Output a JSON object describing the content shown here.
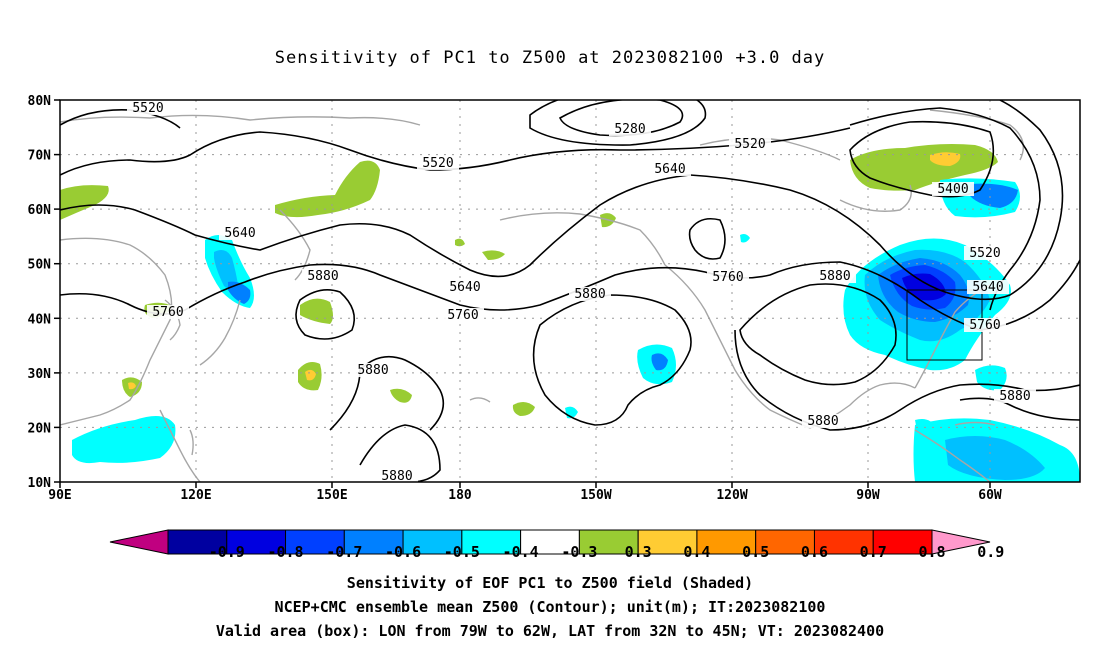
{
  "title": "Sensitivity of PC1 to Z500 at 2023082100 +3.0 day",
  "map": {
    "lat_ticks": [
      "80N",
      "70N",
      "60N",
      "50N",
      "40N",
      "30N",
      "20N",
      "10N"
    ],
    "lon_ticks": [
      "90E",
      "120E",
      "150E",
      "180",
      "150W",
      "120W",
      "90W",
      "60W"
    ],
    "lon_range": [
      "90E",
      "45W"
    ],
    "lat_range": [
      "10N",
      "80N"
    ],
    "gridlines": "dotted",
    "contour_color": "#000000",
    "coastline_color": "#a6a6a6",
    "contour_labels": [
      {
        "text": "5520"
      },
      {
        "text": "5280"
      },
      {
        "text": "5520"
      },
      {
        "text": "5520"
      },
      {
        "text": "5640"
      },
      {
        "text": "5400"
      },
      {
        "text": "5640"
      },
      {
        "text": "5520"
      },
      {
        "text": "5880"
      },
      {
        "text": "5640"
      },
      {
        "text": "5760"
      },
      {
        "text": "5880"
      },
      {
        "text": "5760"
      },
      {
        "text": "5880"
      },
      {
        "text": "5640"
      },
      {
        "text": "5760"
      },
      {
        "text": "5760"
      },
      {
        "text": "5880"
      },
      {
        "text": "5880"
      },
      {
        "text": "5880"
      },
      {
        "text": "5880"
      }
    ],
    "valid_box": {
      "lon_from": "79W",
      "lon_to": "62W",
      "lat_from": "32N",
      "lat_to": "45N"
    }
  },
  "colorbar": {
    "labels": [
      "-0.9",
      "-0.8",
      "-0.7",
      "-0.6",
      "-0.5",
      "-0.4",
      "-0.3",
      "0.3",
      "0.4",
      "0.5",
      "0.6",
      "0.7",
      "0.8",
      "0.9"
    ],
    "colors": [
      "#c00080",
      "#0000a0",
      "#0000e0",
      "#0040ff",
      "#0080ff",
      "#00c0ff",
      "#00ffff",
      "#ffffff",
      "#99cc33",
      "#ffcc33",
      "#ff9900",
      "#ff6600",
      "#ff3300",
      "#ff0000",
      "#ff99cc"
    ]
  },
  "captions": [
    "Sensitivity of EOF PC1 to Z500 field (Shaded)",
    "NCEP+CMC ensemble mean Z500 (Contour); unit(m); IT:2023082100",
    "Valid area (box): LON from 79W to 62W, LAT from 32N to 45N; VT: 2023082400"
  ]
}
